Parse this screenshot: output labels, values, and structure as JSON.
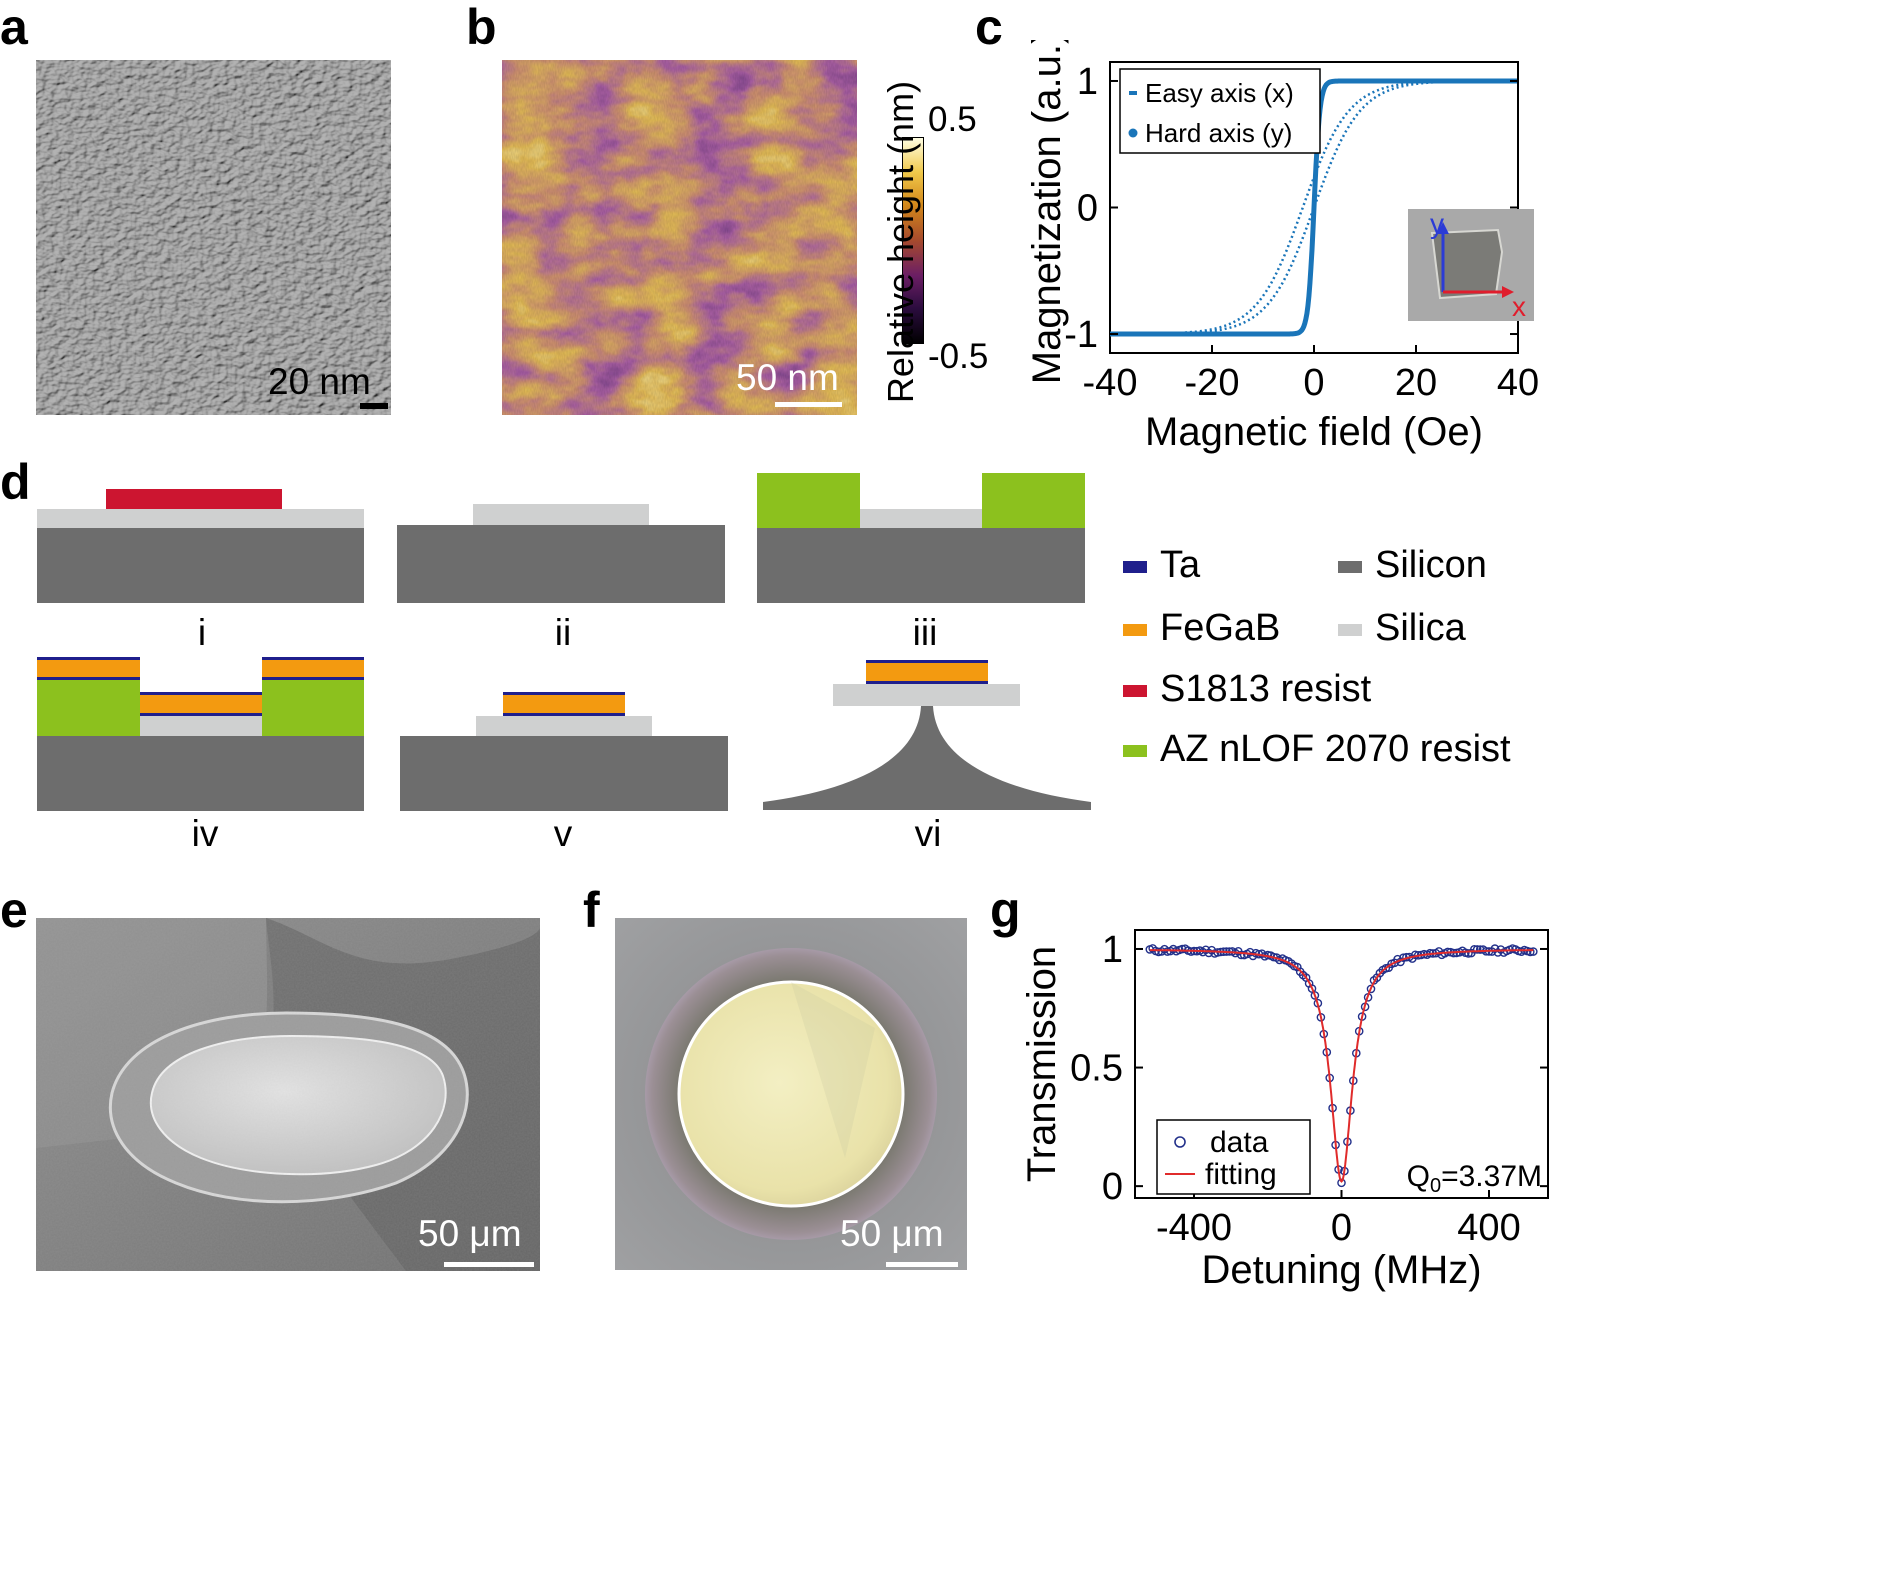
{
  "panel_labels": [
    "a",
    "b",
    "c",
    "d",
    "e",
    "f",
    "g"
  ],
  "colors": {
    "ta": "#1f1f8c",
    "fegab": "#f39a10",
    "s1813": "#cc1530",
    "aznlof": "#8cc11e",
    "silicon": "#6d6d6d",
    "silica": "#cfd0d0",
    "plot_blue": "#1a75b9",
    "fit_red": "#e02b2b",
    "data_navy": "#22308a"
  },
  "panel_a": {
    "scalebar": "20 nm",
    "image": "SEM surface image of FeGaB film (grainy texture)"
  },
  "panel_b": {
    "scalebar": "50 nm",
    "colorbar_label": "Relative height (nm)",
    "colorbar_max": "0.5",
    "colorbar_min": "-0.5",
    "colormap": [
      "#000000",
      "#2b0c3e",
      "#6b1e64",
      "#a64a2d",
      "#d2871a",
      "#f0c84a",
      "#ffffe6"
    ]
  },
  "panel_d": {
    "steps": [
      "i",
      "ii",
      "iii",
      "iv",
      "v",
      "vi"
    ],
    "legend": [
      {
        "label": "Ta",
        "color": "#1f1f8c"
      },
      {
        "label": "Silicon",
        "color": "#6d6d6d"
      },
      {
        "label": "FeGaB",
        "color": "#f39a10"
      },
      {
        "label": "Silica",
        "color": "#cfd0d0"
      },
      {
        "label": "S1813 resist",
        "color": "#cc1530"
      },
      {
        "label": "AZ nLOF 2070 resist",
        "color": "#8cc11e"
      }
    ]
  },
  "panel_e": {
    "scalebar": "50 μm"
  },
  "panel_f": {
    "scalebar": "50 μm"
  },
  "chart_data": [
    {
      "panel": "c",
      "type": "line",
      "xlabel": "Magnetic field (Oe)",
      "ylabel": "Magnetization (a.u.)",
      "xlim": [
        -40,
        40
      ],
      "ylim": [
        -1.15,
        1.15
      ],
      "xticks": [
        "-40",
        "-20",
        "0",
        "20",
        "40"
      ],
      "yticks": [
        "-1",
        "0",
        "1"
      ],
      "legend_position": "top-left",
      "series": [
        {
          "name": "Easy axis (x)",
          "style": "solid",
          "x": [
            -40,
            -20,
            -10,
            -5,
            -3,
            -2,
            -1,
            0,
            1,
            2,
            3,
            5,
            10,
            20,
            40
          ],
          "y": [
            -1.0,
            -0.995,
            -0.985,
            -0.97,
            -0.94,
            -0.88,
            -0.65,
            0.0,
            0.65,
            0.88,
            0.94,
            0.97,
            0.985,
            0.995,
            1.0
          ]
        },
        {
          "name": "Hard axis (y)",
          "style": "dotted",
          "x": [
            -40,
            -30,
            -20,
            -15,
            -10,
            -5,
            0,
            5,
            10,
            15,
            20,
            30,
            40
          ],
          "y": [
            -1.0,
            -0.98,
            -0.9,
            -0.8,
            -0.6,
            -0.3,
            0.0,
            0.3,
            0.6,
            0.8,
            0.9,
            0.98,
            1.0
          ]
        }
      ],
      "inset": {
        "axis_x": "x",
        "axis_y": "y"
      }
    },
    {
      "panel": "g",
      "type": "scatter",
      "xlabel": "Detuning (MHz)",
      "ylabel": "Transmission",
      "xlim": [
        -560,
        560
      ],
      "ylim": [
        -0.05,
        1.08
      ],
      "xticks": [
        "-400",
        "0",
        "400"
      ],
      "yticks": [
        "0",
        "0.5",
        "1"
      ],
      "annotation": "Q0=3.37M",
      "legend_position": "bottom-left",
      "lorentzian": {
        "center": 0,
        "depth": 0.98,
        "hwhm": 36
      },
      "series": [
        {
          "name": "data",
          "style": "markers",
          "x": [
            -520,
            -400,
            -300,
            -200,
            -150,
            -100,
            -70,
            -50,
            -30,
            -15,
            0,
            15,
            30,
            50,
            70,
            100,
            150,
            200,
            300,
            400,
            520
          ],
          "y": [
            0.99,
            0.985,
            0.97,
            0.94,
            0.89,
            0.78,
            0.64,
            0.49,
            0.23,
            0.07,
            0.02,
            0.07,
            0.23,
            0.49,
            0.64,
            0.78,
            0.89,
            0.94,
            0.97,
            0.985,
            0.99
          ]
        },
        {
          "name": "fitting",
          "style": "line"
        }
      ]
    }
  ]
}
